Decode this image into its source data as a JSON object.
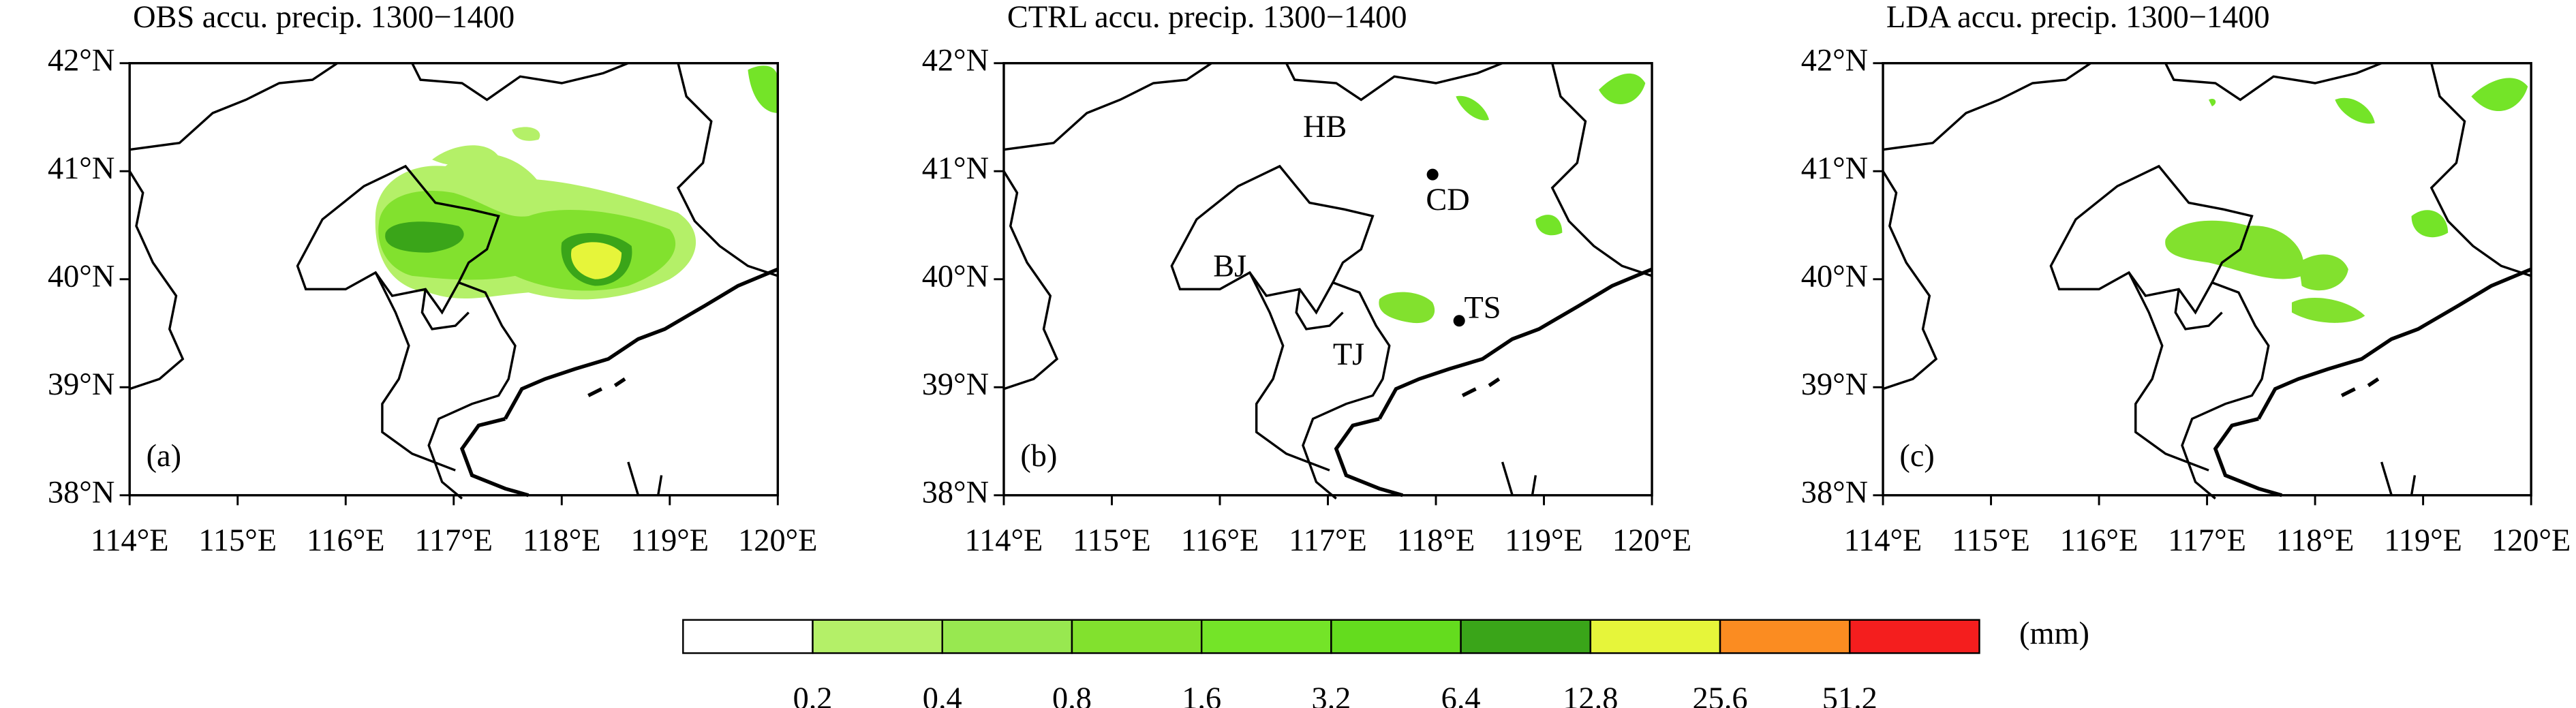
{
  "panels": [
    {
      "title": "OBS accu. precip. 1300−1400",
      "label": "(a)"
    },
    {
      "title": "CTRL accu. precip. 1300−1400",
      "label": "(b)"
    },
    {
      "title": "LDA accu. precip. 1300−1400",
      "label": "(c)"
    }
  ],
  "xlim": [
    114,
    120
  ],
  "ylim": [
    38,
    42
  ],
  "xticks": [
    {
      "value": 114,
      "label": "114°E"
    },
    {
      "value": 115,
      "label": "115°E"
    },
    {
      "value": 116,
      "label": "116°E"
    },
    {
      "value": 117,
      "label": "117°E"
    },
    {
      "value": 118,
      "label": "118°E"
    },
    {
      "value": 119,
      "label": "119°E"
    },
    {
      "value": 120,
      "label": "120°E"
    }
  ],
  "yticks": [
    {
      "value": 38,
      "label": "38°N"
    },
    {
      "value": 39,
      "label": "39°N"
    },
    {
      "value": 40,
      "label": "40°N"
    },
    {
      "value": 41,
      "label": "41°N"
    },
    {
      "value": 42,
      "label": "42°N"
    }
  ],
  "places": [
    "HB",
    "CD",
    "BJ",
    "TJ",
    "TS"
  ],
  "colorbar": {
    "levels": [
      0.2,
      0.4,
      0.8,
      1.6,
      3.2,
      6.4,
      12.8,
      25.6,
      51.2
    ],
    "colors": [
      "#ffffff",
      "#b4f068",
      "#98e850",
      "#82e12e",
      "#74e428",
      "#64dc1e",
      "#3aa519",
      "#e6f53a",
      "#fb8c21",
      "#f41e1e"
    ],
    "unit": "(mm)"
  }
}
